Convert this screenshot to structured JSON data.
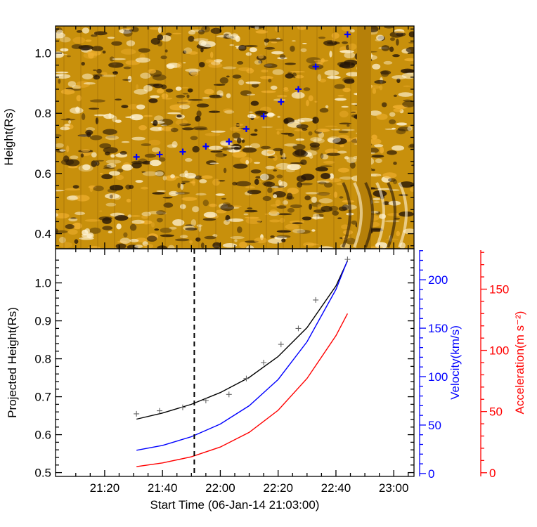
{
  "colors": {
    "height_fit": "#000000",
    "velocity": "#0000ff",
    "acceleration": "#ff0000",
    "marker_top": "#0000ff",
    "marker_bottom": "#666666",
    "image_base": "#c8900c"
  },
  "chart_data": [
    {
      "type": "scatter",
      "panel": "top",
      "description_free": true,
      "ylabel": "Height(Rs)",
      "ylim": [
        0.35,
        1.09
      ],
      "yticks": [
        0.4,
        0.6,
        0.8,
        1.0
      ],
      "ytick_labels": [
        "0.4",
        "0.6",
        "0.8",
        "1.0"
      ],
      "background": "running-difference image (orange / black / white)",
      "series": [
        {
          "marker": "plus",
          "color": "#0000ff",
          "x": [
            "21:31",
            "21:39",
            "21:47",
            "21:55",
            "22:03",
            "22:09",
            "22:15",
            "22:21",
            "22:27",
            "22:33",
            "22:44"
          ],
          "y": [
            0.655,
            0.663,
            0.672,
            0.69,
            0.706,
            0.748,
            0.79,
            0.838,
            0.88,
            0.955,
            1.062
          ]
        }
      ]
    },
    {
      "type": "line",
      "panel": "bottom",
      "xlabel": "Start Time (06-Jan-14 21:03:00)",
      "xlim": [
        "21:03",
        "23:07"
      ],
      "xticks": [
        "21:20",
        "21:40",
        "22:00",
        "22:20",
        "22:40",
        "23:00"
      ],
      "ylabel": "Projected Height(Rs)",
      "ylim": [
        0.49,
        1.09
      ],
      "yticks": [
        0.5,
        0.6,
        0.7,
        0.8,
        0.9,
        1.0
      ],
      "ytick_labels": [
        "0.5",
        "0.6",
        "0.7",
        "0.8",
        "0.9",
        "1.0"
      ],
      "y2label": "Velocity(km/s)",
      "y2lim": [
        -3,
        232
      ],
      "y2ticks": [
        0,
        50,
        100,
        150,
        200
      ],
      "y3label": "Acceleration(m s⁻²)",
      "y3lim": [
        -3,
        183
      ],
      "y3ticks": [
        0,
        50,
        100,
        150
      ],
      "vline_time": "21:51",
      "observed": {
        "x": [
          "21:31",
          "21:39",
          "21:47",
          "21:55",
          "22:03",
          "22:09",
          "22:15",
          "22:21",
          "22:27",
          "22:33",
          "22:44"
        ],
        "y": [
          0.655,
          0.663,
          0.672,
          0.69,
          0.706,
          0.748,
          0.79,
          0.838,
          0.88,
          0.955,
          1.062
        ]
      },
      "height_fit": {
        "x": [
          "21:31",
          "21:40",
          "21:50",
          "22:00",
          "22:10",
          "22:20",
          "22:30",
          "22:40",
          "22:44"
        ],
        "y": [
          0.641,
          0.657,
          0.68,
          0.711,
          0.751,
          0.806,
          0.882,
          0.992,
          1.058
        ]
      },
      "velocity": {
        "x": [
          "21:31",
          "21:40",
          "21:50",
          "22:00",
          "22:10",
          "22:20",
          "22:30",
          "22:40",
          "22:44"
        ],
        "y": [
          24,
          29,
          38,
          51,
          70,
          97,
          136,
          190,
          220
        ]
      },
      "acceleration": {
        "x": [
          "21:31",
          "21:40",
          "21:50",
          "22:00",
          "22:10",
          "22:20",
          "22:30",
          "22:40",
          "22:44"
        ],
        "y": [
          5,
          8,
          13,
          21,
          33,
          51,
          77,
          112,
          130
        ]
      }
    }
  ]
}
